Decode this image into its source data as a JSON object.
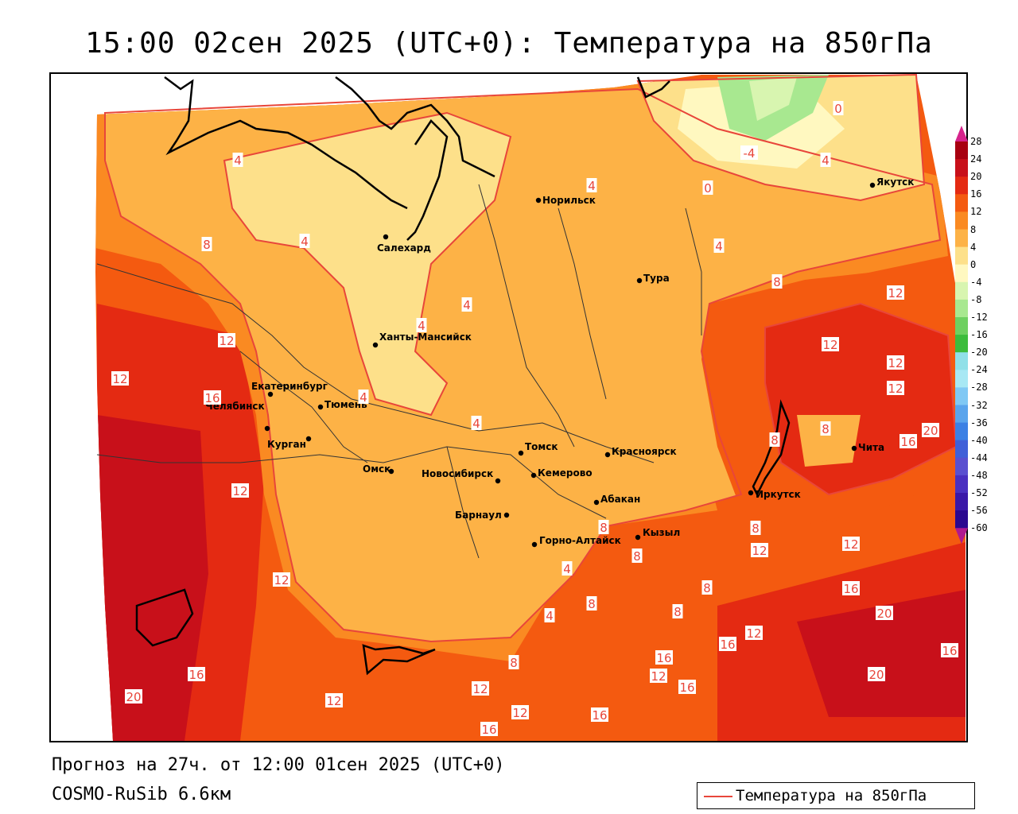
{
  "title": "15:00 02сен 2025 (UTC+0): Температура на 850гПа",
  "forecast_line": "Прогноз на 27ч. от 12:00 01сен 2025 (UTC+0)",
  "model_line": "COSMO-RuSib 6.6км",
  "legend": {
    "label": "Температура на 850гПа",
    "line_color": "#e8463a"
  },
  "colorbar": {
    "labels": [
      "28",
      "24",
      "20",
      "16",
      "12",
      "8",
      "4",
      "0",
      "-4",
      "-8",
      "-12",
      "-16",
      "-20",
      "-24",
      "-28",
      "-32",
      "-36",
      "-40",
      "-44",
      "-48",
      "-52",
      "-56",
      "-60"
    ],
    "colors": [
      "#a80010",
      "#c8101a",
      "#e42a12",
      "#f45a10",
      "#fa8a22",
      "#fdb246",
      "#fde08a",
      "#fff8c0",
      "#d8f5b0",
      "#a8e890",
      "#6ed060",
      "#3cbc3c",
      "#90e0e8",
      "#a8e8f4",
      "#80c8f4",
      "#5aa4ec",
      "#3c80e4",
      "#4060d8",
      "#5a50d0",
      "#4a30c0",
      "#3a18a8",
      "#2a0890"
    ]
  },
  "cities": [
    {
      "name": "Норильск"
    },
    {
      "name": "Якутск"
    },
    {
      "name": "Салехард"
    },
    {
      "name": "Тура"
    },
    {
      "name": "Ханты-Мансийск"
    },
    {
      "name": "Екатеринбург"
    },
    {
      "name": "Тюмень"
    },
    {
      "name": "Челябинск"
    },
    {
      "name": "Курган"
    },
    {
      "name": "Омск"
    },
    {
      "name": "Новосибирск"
    },
    {
      "name": "Томск"
    },
    {
      "name": "Кемерово"
    },
    {
      "name": "Красноярск"
    },
    {
      "name": "Абакан"
    },
    {
      "name": "Барнаул"
    },
    {
      "name": "Горно-Алтайск"
    },
    {
      "name": "Кызыл"
    },
    {
      "name": "Иркутск"
    },
    {
      "name": "Чита"
    }
  ],
  "isotherm_labels": [
    "0",
    "-4",
    "0",
    "4",
    "4",
    "4",
    "8",
    "4",
    "4",
    "4",
    "4",
    "4",
    "4",
    "8",
    "12",
    "12",
    "12",
    "16",
    "12",
    "12",
    "8",
    "8",
    "12",
    "12",
    "16",
    "20",
    "8",
    "8",
    "8",
    "12",
    "12",
    "16",
    "8",
    "8",
    "4",
    "4",
    "12",
    "8",
    "12",
    "16",
    "20",
    "16",
    "20",
    "16",
    "16",
    "12",
    "16",
    "20",
    "16",
    "12",
    "16",
    "12",
    "8",
    "12"
  ]
}
